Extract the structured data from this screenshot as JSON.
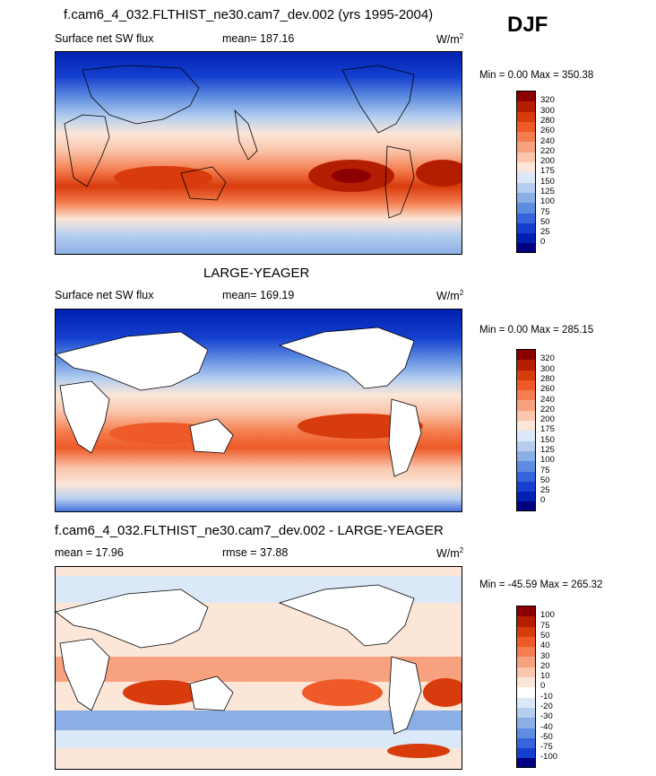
{
  "season": "DJF",
  "chart_data": [
    {
      "type": "heatmap",
      "title": "f.cam6_4_032.FLTHIST_ne30.cam7_dev.002 (yrs 1995-2004)",
      "variable": "Surface net SW flux",
      "stat_label": "mean= 187.16",
      "units_label": "W/m",
      "units_sup": "2",
      "minmax_label": "Min =   0.00 Max = 350.38",
      "min": 0.0,
      "max": 350.38,
      "mean": 187.16,
      "levels": [
        "320",
        "300",
        "280",
        "260",
        "240",
        "220",
        "200",
        "175",
        "150",
        "125",
        "100",
        "75",
        "50",
        "25",
        "0"
      ],
      "colors": [
        "#8b0000",
        "#b41e00",
        "#d83b0c",
        "#ee5a28",
        "#f47d4f",
        "#f8a17e",
        "#fac6ad",
        "#fbe6d8",
        "#dbe8f7",
        "#b5ceef",
        "#8aaee6",
        "#5e8ce0",
        "#3565db",
        "#1540cf",
        "#0020b0",
        "#000080"
      ]
    },
    {
      "type": "heatmap",
      "title": "LARGE-YEAGER",
      "variable": "Surface net SW flux",
      "stat_label": "mean= 169.19",
      "units_label": "W/m",
      "units_sup": "2",
      "minmax_label": "Min =   0.00 Max = 285.15",
      "min": 0.0,
      "max": 285.15,
      "mean": 169.19,
      "levels": [
        "320",
        "300",
        "280",
        "260",
        "240",
        "220",
        "200",
        "175",
        "150",
        "125",
        "100",
        "75",
        "50",
        "25",
        "0"
      ],
      "colors": [
        "#8b0000",
        "#b41e00",
        "#d83b0c",
        "#ee5a28",
        "#f47d4f",
        "#f8a17e",
        "#fac6ad",
        "#fbe6d8",
        "#dbe8f7",
        "#b5ceef",
        "#8aaee6",
        "#5e8ce0",
        "#3565db",
        "#1540cf",
        "#0020b0",
        "#000080"
      ]
    },
    {
      "type": "heatmap",
      "title": "f.cam6_4_032.FLTHIST_ne30.cam7_dev.002 - LARGE-YEAGER",
      "variable": "",
      "stat_label": "mean =  17.96",
      "rmse_label": "rmse =  37.88",
      "units_label": "W/m",
      "units_sup": "2",
      "minmax_label": "Min = -45.59 Max = 265.32",
      "min": -45.59,
      "max": 265.32,
      "mean": 17.96,
      "rmse": 37.88,
      "levels": [
        "100",
        "75",
        "50",
        "40",
        "30",
        "20",
        "10",
        "0",
        "-10",
        "-20",
        "-30",
        "-40",
        "-50",
        "-75",
        "-100"
      ],
      "colors": [
        "#8b0000",
        "#b41e00",
        "#d83b0c",
        "#ee5a28",
        "#f47d4f",
        "#f8a17e",
        "#fac6ad",
        "#fbe6d8",
        "#ffffff",
        "#dbe8f7",
        "#b5ceef",
        "#8aaee6",
        "#5e8ce0",
        "#3565db",
        "#1540cf",
        "#000080"
      ]
    }
  ]
}
